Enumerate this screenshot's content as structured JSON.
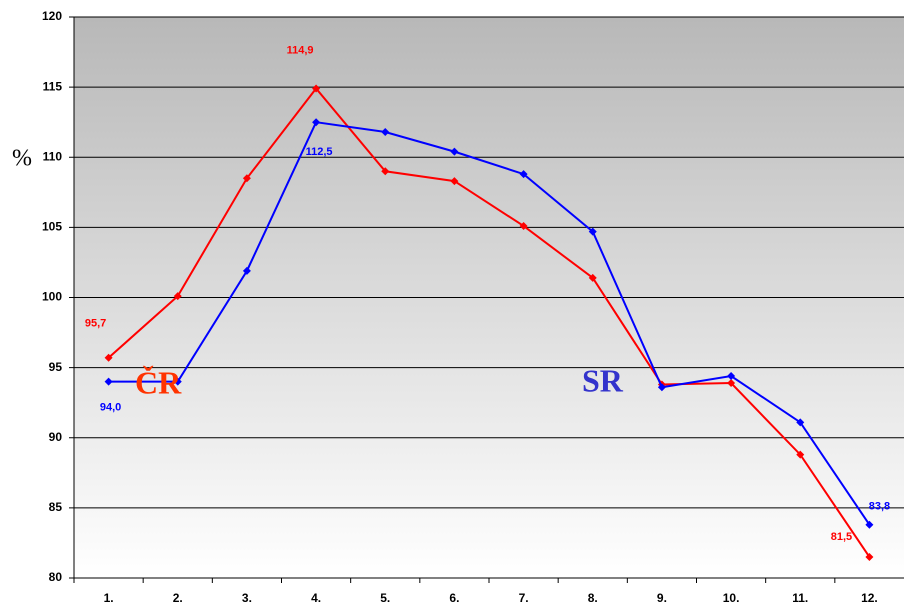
{
  "chart_data": {
    "type": "line",
    "categories": [
      "1.",
      "2.",
      "3.",
      "4.",
      "5.",
      "6.",
      "7.",
      "8.",
      "9.",
      "10.",
      "11.",
      "12."
    ],
    "series": [
      {
        "name": "ČR",
        "color": "#ff0000",
        "values": [
          95.7,
          100.1,
          108.5,
          114.9,
          109.0,
          108.3,
          105.1,
          101.4,
          93.8,
          93.9,
          88.8,
          81.5
        ],
        "value_labels": [
          "95,7",
          null,
          null,
          "114,9",
          null,
          null,
          null,
          null,
          null,
          null,
          null,
          "81,5"
        ]
      },
      {
        "name": "SR",
        "color": "#0000ff",
        "values": [
          94.0,
          94.0,
          101.9,
          112.5,
          111.8,
          110.4,
          108.8,
          104.7,
          93.6,
          94.4,
          91.1,
          83.8
        ],
        "value_labels": [
          "94,0",
          null,
          null,
          "112,5",
          null,
          null,
          null,
          null,
          null,
          null,
          null,
          "83,8"
        ]
      }
    ],
    "y_axis_label": "%",
    "ylim": [
      80,
      120
    ],
    "yticks": [
      80,
      85,
      90,
      95,
      100,
      105,
      110,
      115,
      120
    ],
    "grid": true
  }
}
